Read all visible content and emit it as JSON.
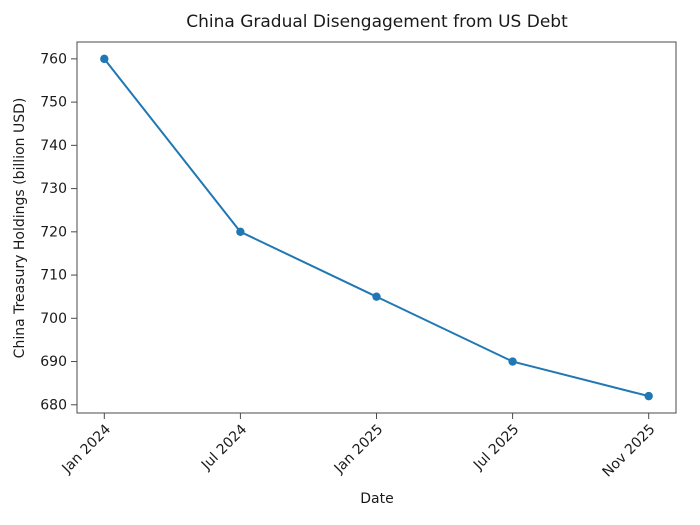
{
  "chart_data": {
    "type": "line",
    "title": "China Gradual Disengagement from US Debt",
    "xlabel": "Date",
    "ylabel": "China Treasury Holdings (billion USD)",
    "categories": [
      "Jan 2024",
      "Jul 2024",
      "Jan 2025",
      "Jul 2025",
      "Nov 2025"
    ],
    "series": [
      {
        "name": "China Treasury Holdings (billion USD)",
        "values": [
          760,
          720,
          705,
          690,
          682
        ]
      }
    ],
    "yticks": [
      680,
      690,
      700,
      710,
      720,
      730,
      740,
      750,
      760
    ],
    "ylim": [
      678.1,
      763.9
    ],
    "x_tick_rotation_deg": 45,
    "grid": false,
    "legend": "none",
    "line_color": "#1f77b4",
    "marker": "circle",
    "axis_color": "#4a4a4a",
    "text_color": "#1a1a1a",
    "background_color": "#ffffff"
  }
}
